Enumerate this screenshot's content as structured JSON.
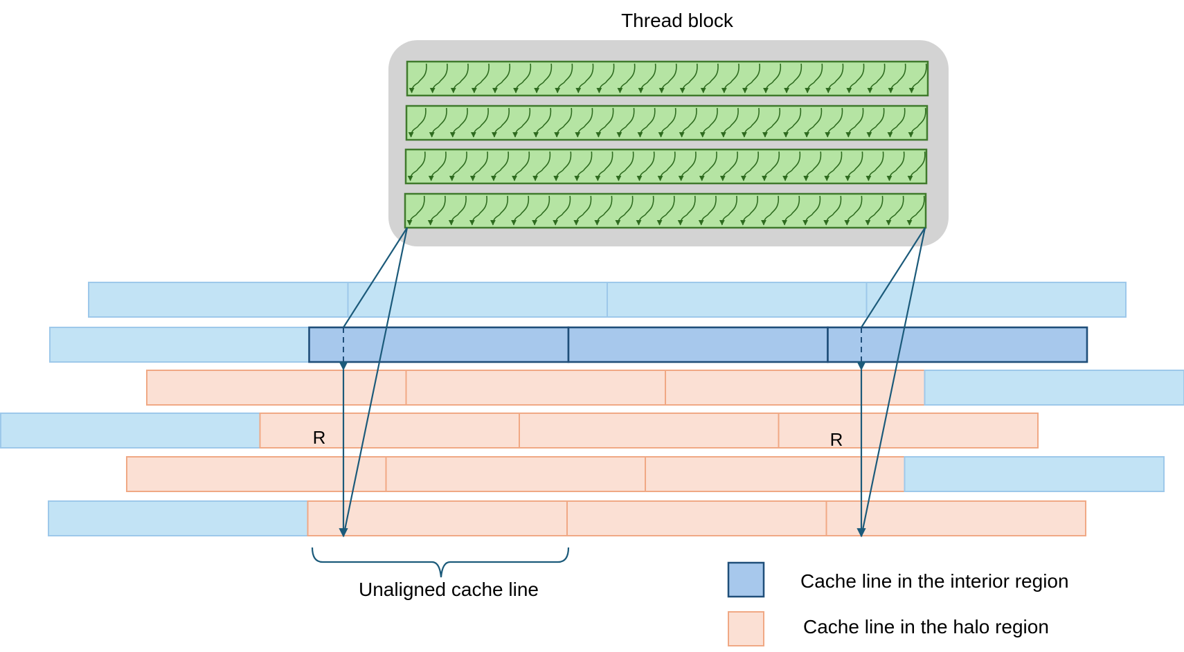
{
  "thread_block": {
    "title": "Thread block",
    "warps": 4,
    "threads_per_warp": 25
  },
  "rows": [
    {
      "cells": [
        "light-blue",
        "light-blue",
        "light-blue",
        "light-blue"
      ]
    },
    {
      "cells": [
        "light-blue",
        "interior",
        "interior",
        "interior"
      ]
    },
    {
      "cells": [
        "halo",
        "halo",
        "halo",
        "light-blue"
      ]
    },
    {
      "cells": [
        "light-blue",
        "halo",
        "halo",
        "halo"
      ]
    },
    {
      "cells": [
        "halo",
        "halo",
        "halo",
        "light-blue"
      ]
    },
    {
      "cells": [
        "light-blue",
        "halo",
        "halo",
        "halo"
      ]
    }
  ],
  "annotations": {
    "radius_left": "R",
    "radius_right": "R",
    "brace_label": "Unaligned cache line"
  },
  "legend": {
    "interior": "Cache line in the interior region",
    "halo": "Cache line in the halo region"
  },
  "colors": {
    "block_bg": "#d3d3d3",
    "warp_fill": "#b5e4a3",
    "warp_stroke": "#3f7a2c",
    "light_blue_fill": "#c2e3f5",
    "light_blue_stroke": "#9dc8ea",
    "interior_fill": "#a7c8ec",
    "interior_stroke": "#1f4e79",
    "halo_fill": "#fbe0d4",
    "halo_stroke": "#f0a884",
    "connector": "#1b5a7a"
  }
}
